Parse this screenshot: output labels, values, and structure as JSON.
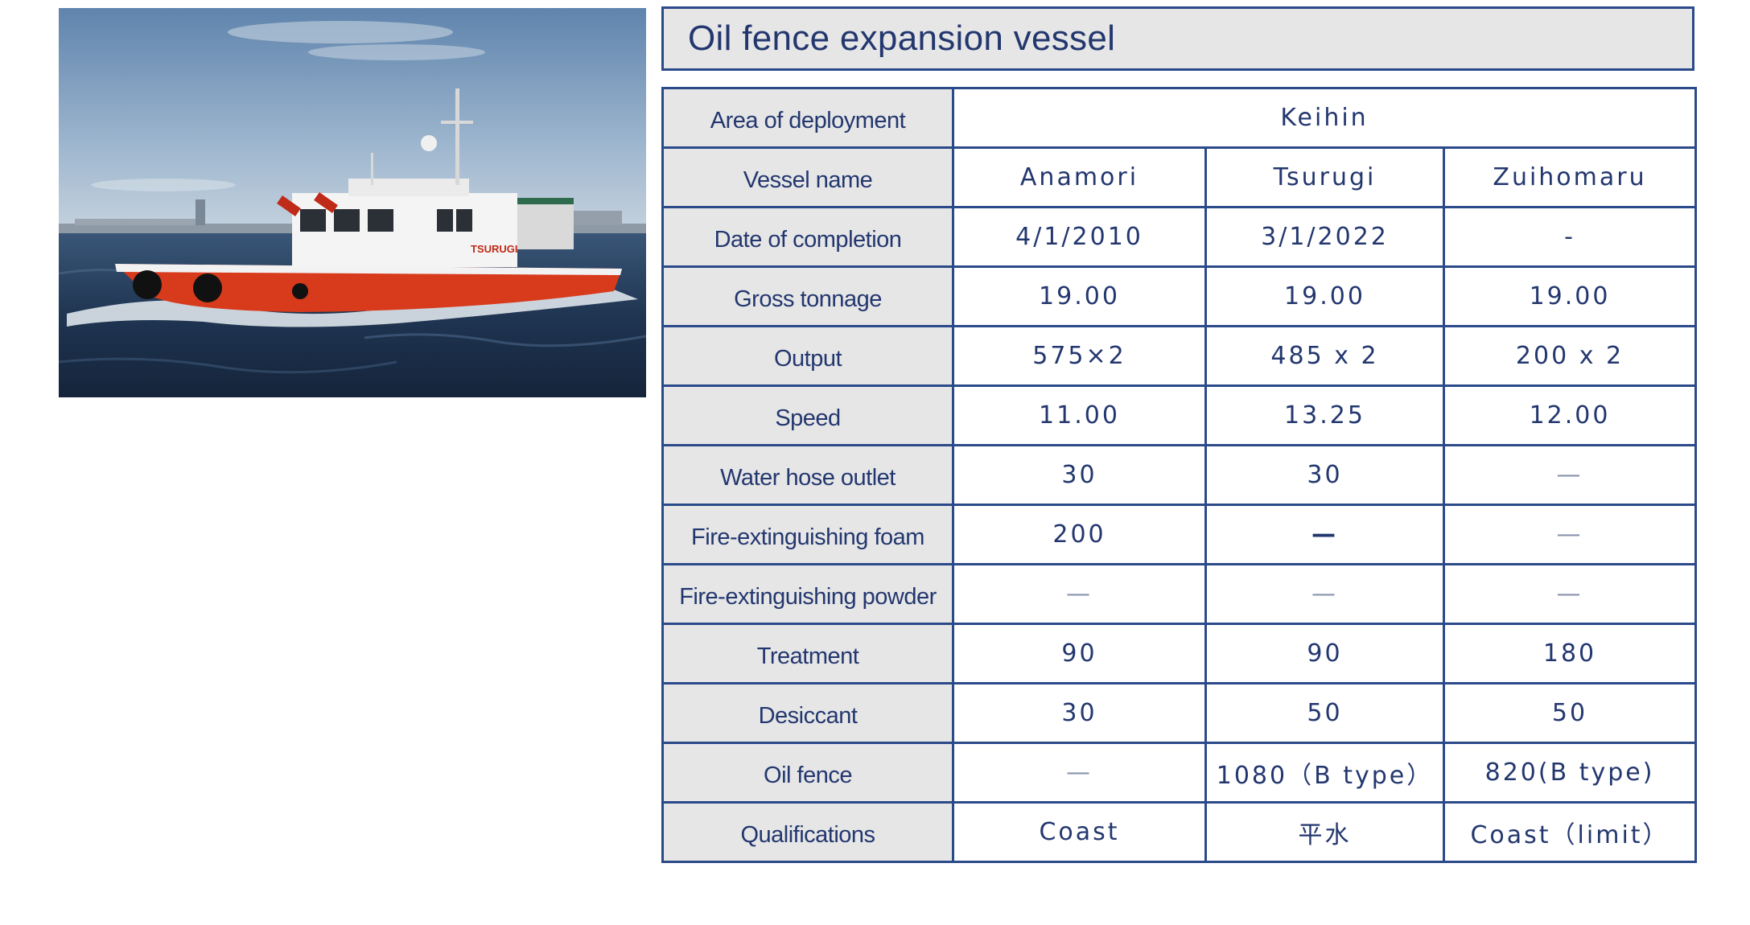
{
  "title": "Oil fence expansion vessel",
  "photo": {
    "hull_name": "TSURUGI"
  },
  "colors": {
    "border": "#2b4a8a",
    "text": "#23376f",
    "label_bg": "#e6e6e6"
  },
  "table": {
    "area": {
      "label": "Area of deployment",
      "value": "Keihin"
    },
    "vessel_name": {
      "label": "Vessel name",
      "values": [
        "Anamori",
        "Tsurugi",
        "Zuihomaru"
      ]
    },
    "rows": [
      {
        "label": "Date of completion",
        "values": [
          "4/1/2010",
          "3/1/2022",
          "-"
        ]
      },
      {
        "label": "Gross tonnage",
        "values": [
          "19.00",
          "19.00",
          "19.00"
        ]
      },
      {
        "label": "Output",
        "values": [
          "575×2",
          "485 x 2",
          "200 x 2"
        ]
      },
      {
        "label": "Speed",
        "values": [
          "11.00",
          "13.25",
          "12.00"
        ]
      },
      {
        "label": "Water hose outlet",
        "values": [
          "30",
          "30",
          "—"
        ]
      },
      {
        "label": "Fire-extinguishing foam",
        "values": [
          "200",
          "—",
          "—"
        ]
      },
      {
        "label": "Fire-extinguishing powder",
        "values": [
          "—",
          "—",
          "—"
        ]
      },
      {
        "label": "Treatment",
        "values": [
          "90",
          "90",
          "180"
        ]
      },
      {
        "label": "Desiccant",
        "values": [
          "30",
          "50",
          "50"
        ]
      },
      {
        "label": "Oil fence",
        "values": [
          "—",
          "1080（B type）",
          "820(B type)"
        ]
      },
      {
        "label": "Qualifications",
        "values": [
          "Coast",
          "平水",
          "Coast（limit）"
        ]
      }
    ]
  }
}
